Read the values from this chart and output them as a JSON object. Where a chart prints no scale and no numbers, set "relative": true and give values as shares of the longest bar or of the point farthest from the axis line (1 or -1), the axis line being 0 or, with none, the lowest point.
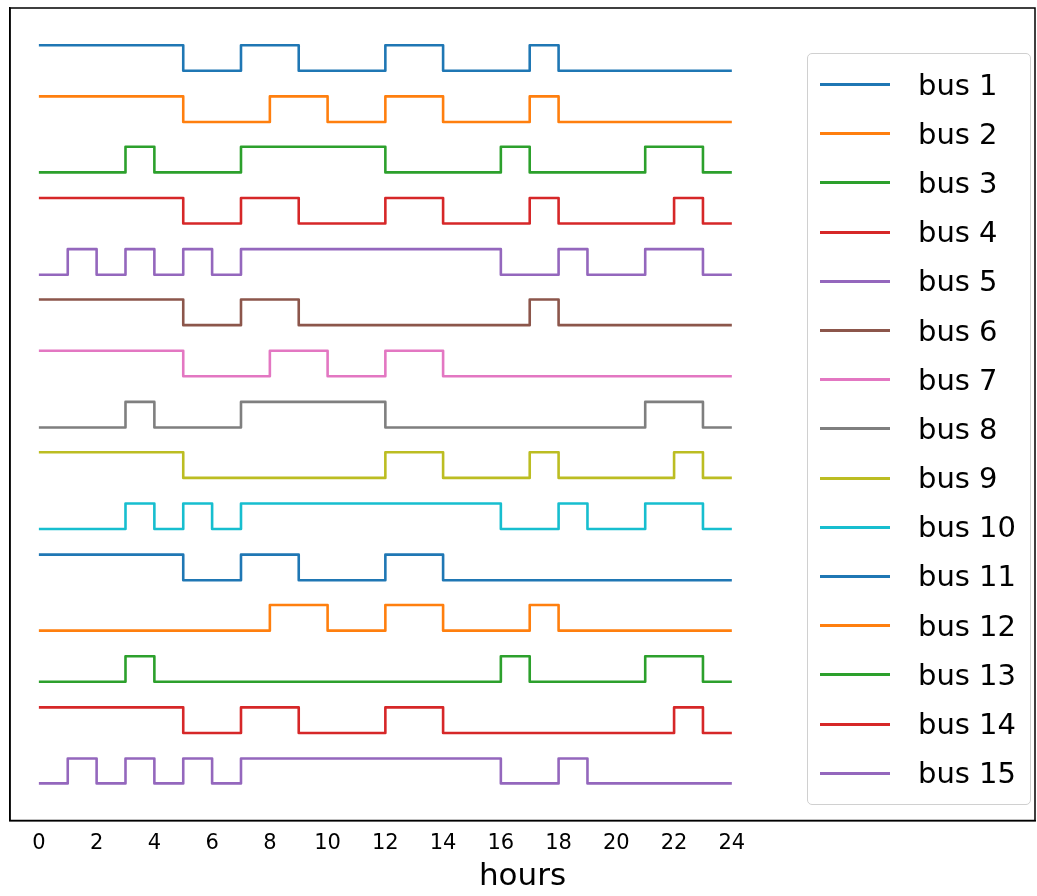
{
  "chart_data": {
    "type": "step",
    "relative": true,
    "xlabel": "hours",
    "x": [
      0,
      1,
      2,
      3,
      4,
      5,
      6,
      7,
      8,
      9,
      10,
      11,
      12,
      13,
      14,
      15,
      16,
      17,
      18,
      19,
      20,
      21,
      22,
      23,
      24
    ],
    "xlim": [
      -1,
      34.5
    ],
    "xticks": [
      0,
      2,
      4,
      6,
      8,
      10,
      12,
      14,
      16,
      18,
      20,
      22,
      24
    ],
    "tick_labels": "x",
    "grid": false,
    "legend": "right",
    "marker": "none",
    "line_style": "solid",
    "series": [
      {
        "name": "bus 1",
        "color": "#1f77b4",
        "values": [
          1,
          1,
          1,
          1,
          1,
          0.967,
          0.967,
          1,
          1,
          0.967,
          0.967,
          0.967,
          1,
          1,
          0.967,
          0.967,
          0.967,
          1,
          0.967,
          0.967,
          0.967,
          0.967,
          0.967,
          0.967,
          0.967
        ]
      },
      {
        "name": "bus 2",
        "color": "#ff7f0e",
        "values": [
          0.934,
          0.934,
          0.934,
          0.934,
          0.934,
          0.901,
          0.901,
          0.901,
          0.934,
          0.934,
          0.901,
          0.901,
          0.934,
          0.934,
          0.901,
          0.901,
          0.901,
          0.934,
          0.901,
          0.901,
          0.901,
          0.901,
          0.901,
          0.901,
          0.901
        ]
      },
      {
        "name": "bus 3",
        "color": "#2ca02c",
        "values": [
          0.836,
          0.836,
          0.836,
          0.869,
          0.836,
          0.836,
          0.836,
          0.869,
          0.869,
          0.869,
          0.869,
          0.869,
          0.836,
          0.836,
          0.836,
          0.836,
          0.869,
          0.836,
          0.836,
          0.836,
          0.836,
          0.869,
          0.869,
          0.836,
          0.836
        ]
      },
      {
        "name": "bus 4",
        "color": "#d62728",
        "values": [
          0.803,
          0.803,
          0.803,
          0.803,
          0.803,
          0.77,
          0.77,
          0.803,
          0.803,
          0.77,
          0.77,
          0.77,
          0.803,
          0.803,
          0.77,
          0.77,
          0.77,
          0.803,
          0.77,
          0.77,
          0.77,
          0.77,
          0.803,
          0.77,
          0.77
        ]
      },
      {
        "name": "bus 5",
        "color": "#9467bd",
        "values": [
          0.704,
          0.737,
          0.704,
          0.737,
          0.704,
          0.737,
          0.704,
          0.737,
          0.737,
          0.737,
          0.737,
          0.737,
          0.737,
          0.737,
          0.737,
          0.737,
          0.704,
          0.704,
          0.737,
          0.704,
          0.704,
          0.737,
          0.737,
          0.704,
          0.704
        ]
      },
      {
        "name": "bus 6",
        "color": "#8c564b",
        "values": [
          0.672,
          0.672,
          0.672,
          0.672,
          0.672,
          0.639,
          0.639,
          0.672,
          0.672,
          0.639,
          0.639,
          0.639,
          0.639,
          0.639,
          0.639,
          0.639,
          0.639,
          0.672,
          0.639,
          0.639,
          0.639,
          0.639,
          0.639,
          0.639,
          0.639
        ]
      },
      {
        "name": "bus 7",
        "color": "#e377c2",
        "values": [
          0.606,
          0.606,
          0.606,
          0.606,
          0.606,
          0.573,
          0.573,
          0.573,
          0.606,
          0.606,
          0.573,
          0.573,
          0.606,
          0.606,
          0.573,
          0.573,
          0.573,
          0.573,
          0.573,
          0.573,
          0.573,
          0.573,
          0.573,
          0.573,
          0.573
        ]
      },
      {
        "name": "bus 8",
        "color": "#7f7f7f",
        "values": [
          0.507,
          0.507,
          0.507,
          0.54,
          0.507,
          0.507,
          0.507,
          0.54,
          0.54,
          0.54,
          0.54,
          0.54,
          0.507,
          0.507,
          0.507,
          0.507,
          0.507,
          0.507,
          0.507,
          0.507,
          0.507,
          0.54,
          0.54,
          0.507,
          0.507
        ]
      },
      {
        "name": "bus 9",
        "color": "#bcbd22",
        "values": [
          0.475,
          0.475,
          0.475,
          0.475,
          0.475,
          0.442,
          0.442,
          0.442,
          0.442,
          0.442,
          0.442,
          0.442,
          0.475,
          0.475,
          0.442,
          0.442,
          0.442,
          0.475,
          0.442,
          0.442,
          0.442,
          0.442,
          0.475,
          0.442,
          0.442
        ]
      },
      {
        "name": "bus 10",
        "color": "#17becf",
        "values": [
          0.376,
          0.376,
          0.376,
          0.409,
          0.376,
          0.409,
          0.376,
          0.409,
          0.409,
          0.409,
          0.409,
          0.409,
          0.409,
          0.409,
          0.409,
          0.409,
          0.376,
          0.376,
          0.409,
          0.376,
          0.376,
          0.409,
          0.409,
          0.376,
          0.376
        ]
      },
      {
        "name": "bus 11",
        "color": "#1f77b4",
        "values": [
          0.343,
          0.343,
          0.343,
          0.343,
          0.343,
          0.31,
          0.31,
          0.343,
          0.343,
          0.31,
          0.31,
          0.31,
          0.343,
          0.343,
          0.31,
          0.31,
          0.31,
          0.31,
          0.31,
          0.31,
          0.31,
          0.31,
          0.31,
          0.31,
          0.31
        ]
      },
      {
        "name": "bus 12",
        "color": "#ff7f0e",
        "values": [
          0.245,
          0.245,
          0.245,
          0.245,
          0.245,
          0.245,
          0.245,
          0.245,
          0.278,
          0.278,
          0.245,
          0.245,
          0.278,
          0.278,
          0.245,
          0.245,
          0.245,
          0.278,
          0.245,
          0.245,
          0.245,
          0.245,
          0.245,
          0.245,
          0.245
        ]
      },
      {
        "name": "bus 13",
        "color": "#2ca02c",
        "values": [
          0.179,
          0.179,
          0.179,
          0.212,
          0.179,
          0.179,
          0.179,
          0.179,
          0.179,
          0.179,
          0.179,
          0.179,
          0.179,
          0.179,
          0.179,
          0.179,
          0.212,
          0.179,
          0.179,
          0.179,
          0.179,
          0.212,
          0.212,
          0.179,
          0.179
        ]
      },
      {
        "name": "bus 14",
        "color": "#d62728",
        "values": [
          0.146,
          0.146,
          0.146,
          0.146,
          0.146,
          0.113,
          0.113,
          0.146,
          0.146,
          0.113,
          0.113,
          0.113,
          0.146,
          0.146,
          0.113,
          0.113,
          0.113,
          0.113,
          0.113,
          0.113,
          0.113,
          0.113,
          0.146,
          0.113,
          0.113
        ]
      },
      {
        "name": "bus 15",
        "color": "#9467bd",
        "values": [
          0.048,
          0.08,
          0.048,
          0.08,
          0.048,
          0.08,
          0.048,
          0.08,
          0.08,
          0.08,
          0.08,
          0.08,
          0.08,
          0.08,
          0.08,
          0.08,
          0.048,
          0.048,
          0.08,
          0.048,
          0.048,
          0.048,
          0.048,
          0.048,
          0.048
        ]
      }
    ]
  }
}
